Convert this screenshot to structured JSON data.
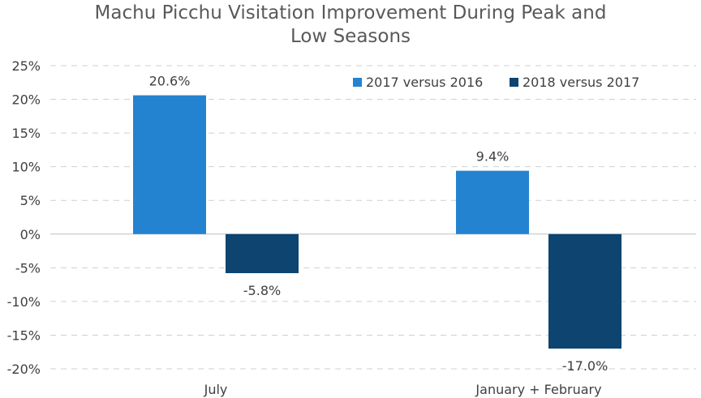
{
  "chart_data": {
    "type": "bar",
    "title_lines": [
      "Machu Picchu Visitation Improvement During Peak and",
      "Low Seasons"
    ],
    "categories": [
      "July",
      "January + February"
    ],
    "series": [
      {
        "name": "2017 versus 2016",
        "color": "#2483D1",
        "values": [
          20.6,
          9.4
        ],
        "labels": [
          "20.6%",
          "9.4%"
        ]
      },
      {
        "name": "2018 versus 2017",
        "color": "#0D4470",
        "values": [
          -5.8,
          -17.0
        ],
        "labels": [
          "-5.8%",
          "-17.0%"
        ]
      }
    ],
    "ylim": [
      -20,
      25
    ],
    "yticks": [
      25,
      20,
      15,
      10,
      5,
      0,
      -5,
      -10,
      -15,
      -20
    ],
    "ytick_labels": [
      "25%",
      "20%",
      "15%",
      "10%",
      "5%",
      "0%",
      "-5%",
      "-10%",
      "-15%",
      "-20%"
    ],
    "grid": true,
    "legend_position": "top-right",
    "xlabel": "",
    "ylabel": ""
  }
}
